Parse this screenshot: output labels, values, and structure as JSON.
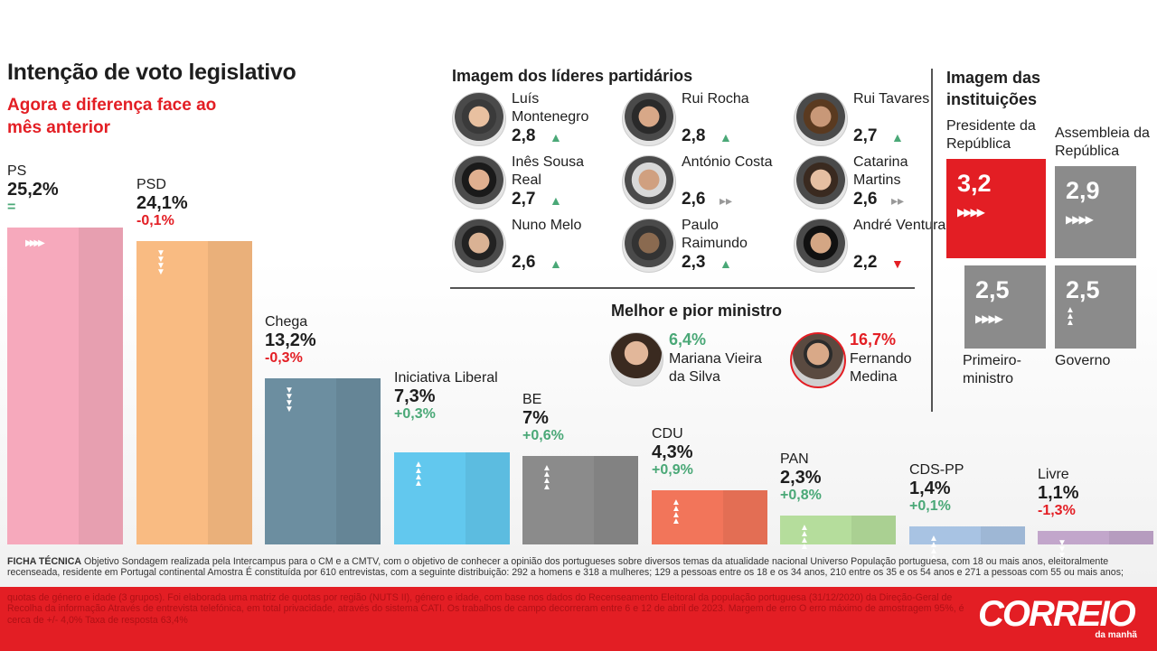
{
  "main": {
    "title": "Intenção de voto legislativo",
    "subtitle": "Agora e diferença face ao mês anterior"
  },
  "chart_data": {
    "type": "bar",
    "categories": [
      "PS",
      "PSD",
      "Chega",
      "Iniciativa Liberal",
      "BE",
      "CDU",
      "PAN",
      "CDS-PP",
      "Livre"
    ],
    "values": [
      25.2,
      24.1,
      13.2,
      7.3,
      7.0,
      4.3,
      2.3,
      1.4,
      1.1
    ],
    "value_labels": [
      "25,2%",
      "24,1%",
      "13,2%",
      "7,3%",
      "7%",
      "4,3%",
      "2,3%",
      "1,4%",
      "1,1%"
    ],
    "diff_labels": [
      "=",
      "-0,1%",
      "-0,3%",
      "+0,3%",
      "+0,6%",
      "+0,9%",
      "+0,8%",
      "+0,1%",
      "-1,3%"
    ],
    "trend": [
      "same",
      "down",
      "down",
      "up",
      "up",
      "up",
      "up",
      "up",
      "down"
    ],
    "colors": [
      "#f6a9bc",
      "#f9bb82",
      "#6c8ea0",
      "#62c8ee",
      "#8b8b8b",
      "#f2755a",
      "#b5dd9c",
      "#a8c3e3",
      "#c2a6cb"
    ],
    "ylim": [
      0,
      26.5
    ]
  },
  "leaders": {
    "title": "Imagem dos líderes partidários",
    "items": [
      {
        "name": "Luís Montenegro",
        "score": "2,8",
        "trend": "up"
      },
      {
        "name": "Rui Rocha",
        "score": "2,8",
        "trend": "up"
      },
      {
        "name": "Rui Tavares",
        "score": "2,7",
        "trend": "up"
      },
      {
        "name": "Inês Sousa Real",
        "score": "2,7",
        "trend": "up"
      },
      {
        "name": "António Costa",
        "score": "2,6",
        "trend": "same"
      },
      {
        "name": "Catarina Martins",
        "score": "2,6",
        "trend": "same"
      },
      {
        "name": "Nuno Melo",
        "score": "2,6",
        "trend": "up"
      },
      {
        "name": "Paulo Raimundo",
        "score": "2,3",
        "trend": "up"
      },
      {
        "name": "André Ventura",
        "score": "2,2",
        "trend": "down"
      }
    ]
  },
  "ministers": {
    "title": "Melhor e pior ministro",
    "best": {
      "pct": "6,4%",
      "name": "Mariana Vieira da Silva"
    },
    "worst": {
      "pct": "16,7%",
      "name": "Fernando Medina"
    }
  },
  "institutions": {
    "title": "Imagem das instituições",
    "items": [
      {
        "name": "Presidente da República",
        "score": "3,2",
        "trend": "same",
        "color": "#e31e24"
      },
      {
        "name": "Assembleia da República",
        "score": "2,9",
        "trend": "same",
        "color": "#8b8b8b"
      },
      {
        "name": "Primeiro-ministro",
        "score": "2,5",
        "trend": "same",
        "color": "#8b8b8b"
      },
      {
        "name": "Governo",
        "score": "2,5",
        "trend": "up",
        "color": "#8b8b8b"
      }
    ]
  },
  "footnote": {
    "label": "FICHA TÉCNICA",
    "text1": "Objetivo Sondagem realizada pela Intercampus para o CM e a CMTV, com o objetivo de conhecer a opinião dos portugueses sobre diversos temas da atualidade nacional Universo População portuguesa, com 18 ou mais anos, eleitoralmente recenseada, residente em Portugal continental Amostra É constituída por 610 entrevistas, com a seguinte distribuição: 292 a homens e 318 a mulheres; 129 a pessoas entre os 18 e os 34 anos, 210 entre os 35 e os 54 anos e 271 a pessoas com 55 ou mais anos;",
    "text2": "quotas de género e idade (3 grupos). Foi elaborada uma matriz de quotas por região (NUTS II), género e idade, com base nos dados do Recenseamento Eleitoral da população portuguesa (31/12/2020) da Direção-Geral de Recolha da informação Através de entrevista telefónica, em total privacidade, através do sistema CATI. Os trabalhos de campo decorreram entre 6 e 12 de abril de 2023. Margem de erro O erro máximo de amostragem 95%, é cerca de +/- 4,0% Taxa de resposta 63,4%"
  },
  "brand": {
    "logo": "CORREIO",
    "tagline": "da manhã"
  }
}
